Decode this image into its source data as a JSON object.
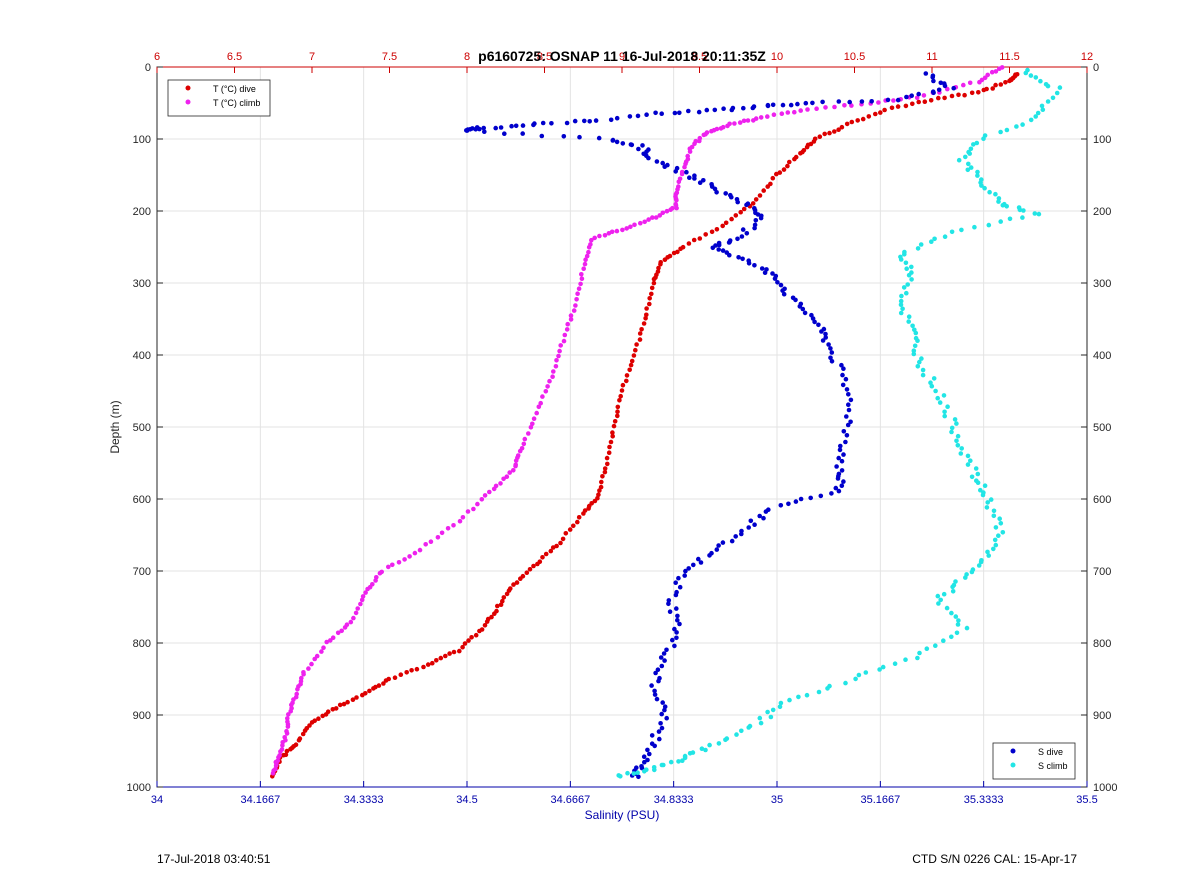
{
  "chart_data": {
    "type": "scatter",
    "title": "p6160725: OSNAP 11 16-Jul-2018 20:11:35Z",
    "ylabel": "Depth (m)",
    "xlabel_bottom": "Salinity (PSU)",
    "ylim": [
      0,
      1000
    ],
    "y_reversed": true,
    "y_ticks": [
      "0",
      "100",
      "200",
      "300",
      "400",
      "500",
      "600",
      "700",
      "800",
      "900",
      "1000"
    ],
    "x_top": {
      "axis": "temperature",
      "lim": [
        6,
        12
      ],
      "ticks": [
        "6",
        "6.5",
        "7",
        "7.5",
        "8",
        "8.5",
        "9",
        "9.5",
        "10",
        "10.5",
        "11",
        "11.5",
        "12"
      ],
      "color": "#cc0000"
    },
    "x_bottom": {
      "axis": "salinity",
      "lim": [
        34,
        35.5
      ],
      "ticks": [
        "34",
        "34.1667",
        "34.3333",
        "34.5",
        "34.6667",
        "34.8333",
        "35",
        "35.1667",
        "35.3333",
        "35.5"
      ],
      "color": "#0000aa"
    },
    "grid": true,
    "legends": [
      {
        "placement": "top-left",
        "entries": [
          "T (°C) dive",
          "T (°C) climb"
        ]
      },
      {
        "placement": "bottom-right",
        "entries": [
          "S dive",
          "S climb"
        ]
      }
    ],
    "series": [
      {
        "name": "T (°C) dive",
        "axis": "top",
        "color": "#dd0000",
        "points": [
          [
            11.55,
            10
          ],
          [
            11.5,
            20
          ],
          [
            11.3,
            35
          ],
          [
            11.0,
            45
          ],
          [
            10.7,
            60
          ],
          [
            10.45,
            80
          ],
          [
            10.25,
            100
          ],
          [
            10.15,
            120
          ],
          [
            10.0,
            150
          ],
          [
            9.85,
            190
          ],
          [
            9.65,
            220
          ],
          [
            9.4,
            250
          ],
          [
            9.25,
            270
          ],
          [
            9.2,
            300
          ],
          [
            9.15,
            350
          ],
          [
            9.08,
            400
          ],
          [
            9.0,
            450
          ],
          [
            8.95,
            500
          ],
          [
            8.9,
            550
          ],
          [
            8.85,
            595
          ],
          [
            8.75,
            620
          ],
          [
            8.6,
            660
          ],
          [
            8.45,
            690
          ],
          [
            8.3,
            720
          ],
          [
            8.2,
            750
          ],
          [
            8.1,
            780
          ],
          [
            7.95,
            810
          ],
          [
            7.75,
            830
          ],
          [
            7.5,
            850
          ],
          [
            7.35,
            870
          ],
          [
            7.15,
            890
          ],
          [
            7.0,
            910
          ],
          [
            6.9,
            940
          ],
          [
            6.8,
            960
          ],
          [
            6.75,
            985
          ]
        ]
      },
      {
        "name": "T (°C) climb",
        "axis": "top",
        "color": "#ee22ee",
        "points": [
          [
            11.45,
            0
          ],
          [
            11.3,
            20
          ],
          [
            10.95,
            40
          ],
          [
            10.6,
            50
          ],
          [
            10.2,
            60
          ],
          [
            9.9,
            70
          ],
          [
            9.7,
            80
          ],
          [
            9.55,
            90
          ],
          [
            9.45,
            110
          ],
          [
            9.4,
            140
          ],
          [
            9.35,
            175
          ],
          [
            9.35,
            195
          ],
          [
            9.2,
            210
          ],
          [
            9.0,
            225
          ],
          [
            8.8,
            240
          ],
          [
            8.75,
            280
          ],
          [
            8.7,
            330
          ],
          [
            8.62,
            380
          ],
          [
            8.55,
            430
          ],
          [
            8.45,
            480
          ],
          [
            8.35,
            530
          ],
          [
            8.3,
            560
          ],
          [
            8.15,
            590
          ],
          [
            7.95,
            630
          ],
          [
            7.7,
            670
          ],
          [
            7.45,
            700
          ],
          [
            7.35,
            730
          ],
          [
            7.25,
            770
          ],
          [
            7.1,
            800
          ],
          [
            6.95,
            840
          ],
          [
            6.9,
            870
          ],
          [
            6.85,
            900
          ],
          [
            6.83,
            930
          ],
          [
            6.78,
            960
          ],
          [
            6.75,
            980
          ]
        ]
      },
      {
        "name": "S dive",
        "axis": "bottom",
        "color": "#0000cc",
        "points": [
          [
            35.24,
            10
          ],
          [
            35.28,
            30
          ],
          [
            35.2,
            45
          ],
          [
            35.05,
            50
          ],
          [
            34.98,
            55
          ],
          [
            34.9,
            60
          ],
          [
            34.8,
            65
          ],
          [
            34.7,
            75
          ],
          [
            34.6,
            80
          ],
          [
            34.52,
            85
          ],
          [
            34.5,
            88
          ],
          [
            34.72,
            100
          ],
          [
            34.78,
            110
          ],
          [
            34.8,
            130
          ],
          [
            34.86,
            150
          ],
          [
            34.9,
            170
          ],
          [
            34.95,
            190
          ],
          [
            34.98,
            210
          ],
          [
            34.93,
            240
          ],
          [
            34.9,
            250
          ],
          [
            34.95,
            270
          ],
          [
            35.0,
            290
          ],
          [
            35.02,
            320
          ],
          [
            35.06,
            350
          ],
          [
            35.08,
            380
          ],
          [
            35.1,
            420
          ],
          [
            35.12,
            470
          ],
          [
            35.11,
            520
          ],
          [
            35.1,
            560
          ],
          [
            35.1,
            590
          ],
          [
            35.0,
            610
          ],
          [
            34.95,
            640
          ],
          [
            34.9,
            670
          ],
          [
            34.85,
            700
          ],
          [
            34.83,
            740
          ],
          [
            34.84,
            780
          ],
          [
            34.82,
            820
          ],
          [
            34.8,
            860
          ],
          [
            34.82,
            900
          ],
          [
            34.8,
            940
          ],
          [
            34.78,
            970
          ],
          [
            34.77,
            985
          ]
        ]
      },
      {
        "name": "S climb",
        "axis": "bottom",
        "color": "#22e5e5",
        "points": [
          [
            35.4,
            5
          ],
          [
            35.45,
            30
          ],
          [
            35.42,
            70
          ],
          [
            35.33,
            100
          ],
          [
            35.3,
            130
          ],
          [
            35.33,
            160
          ],
          [
            35.36,
            190
          ],
          [
            35.42,
            205
          ],
          [
            35.28,
            230
          ],
          [
            35.2,
            260
          ],
          [
            35.22,
            290
          ],
          [
            35.2,
            330
          ],
          [
            35.22,
            370
          ],
          [
            35.23,
            410
          ],
          [
            35.26,
            450
          ],
          [
            35.28,
            490
          ],
          [
            35.3,
            530
          ],
          [
            35.32,
            570
          ],
          [
            35.34,
            600
          ],
          [
            35.36,
            640
          ],
          [
            35.34,
            680
          ],
          [
            35.3,
            710
          ],
          [
            35.26,
            740
          ],
          [
            35.3,
            780
          ],
          [
            35.22,
            820
          ],
          [
            35.12,
            850
          ],
          [
            35.02,
            880
          ],
          [
            34.97,
            910
          ],
          [
            34.9,
            940
          ],
          [
            34.85,
            960
          ],
          [
            34.8,
            975
          ],
          [
            34.74,
            985
          ]
        ]
      }
    ]
  },
  "footer": {
    "left": "17-Jul-2018 03:40:51",
    "right": "CTD S/N 0226  CAL: 15-Apr-17"
  }
}
